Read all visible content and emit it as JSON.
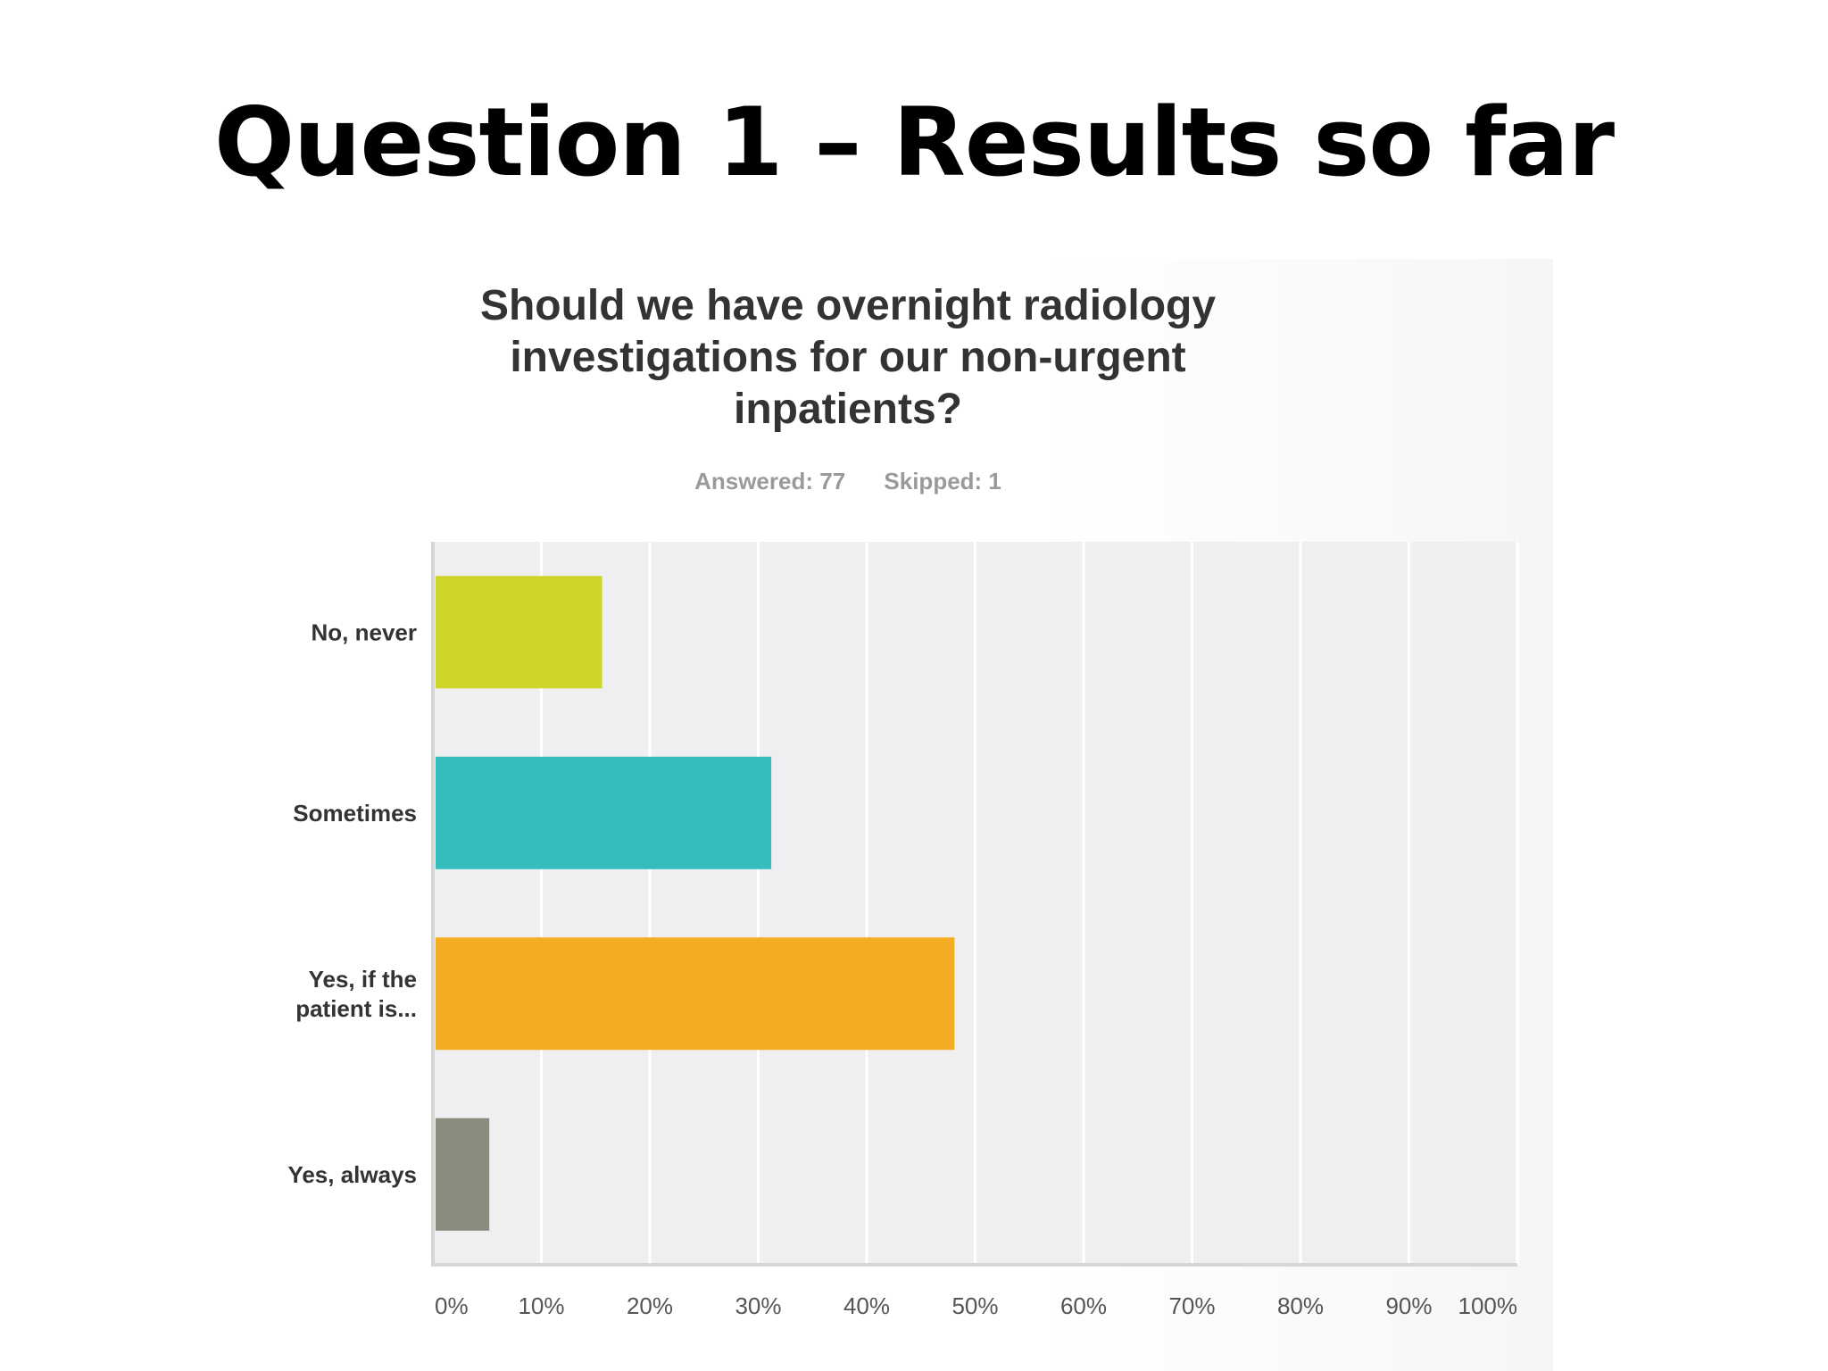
{
  "slide": {
    "title": "Question 1 – Results so far"
  },
  "chart_data": {
    "type": "bar",
    "orientation": "horizontal",
    "title": "Should we have overnight radiology investigations for our non-urgent inpatients?",
    "answered": "Answered: 77",
    "skipped": "Skipped: 1",
    "categories": [
      [
        "No, never"
      ],
      [
        "Sometimes"
      ],
      [
        "Yes, if the",
        "patient is..."
      ],
      [
        "Yes, always"
      ]
    ],
    "values": [
      15.6,
      31.2,
      48.1,
      5.2
    ],
    "colors": [
      "#cdd52b",
      "#35bcbd",
      "#f2ad22",
      "#8a8b7c"
    ],
    "xlim": [
      0,
      100
    ],
    "xticks": [
      "0%",
      "10%",
      "20%",
      "30%",
      "40%",
      "50%",
      "60%",
      "70%",
      "80%",
      "90%",
      "100%"
    ],
    "grid": true,
    "xlabel": "",
    "ylabel": ""
  }
}
